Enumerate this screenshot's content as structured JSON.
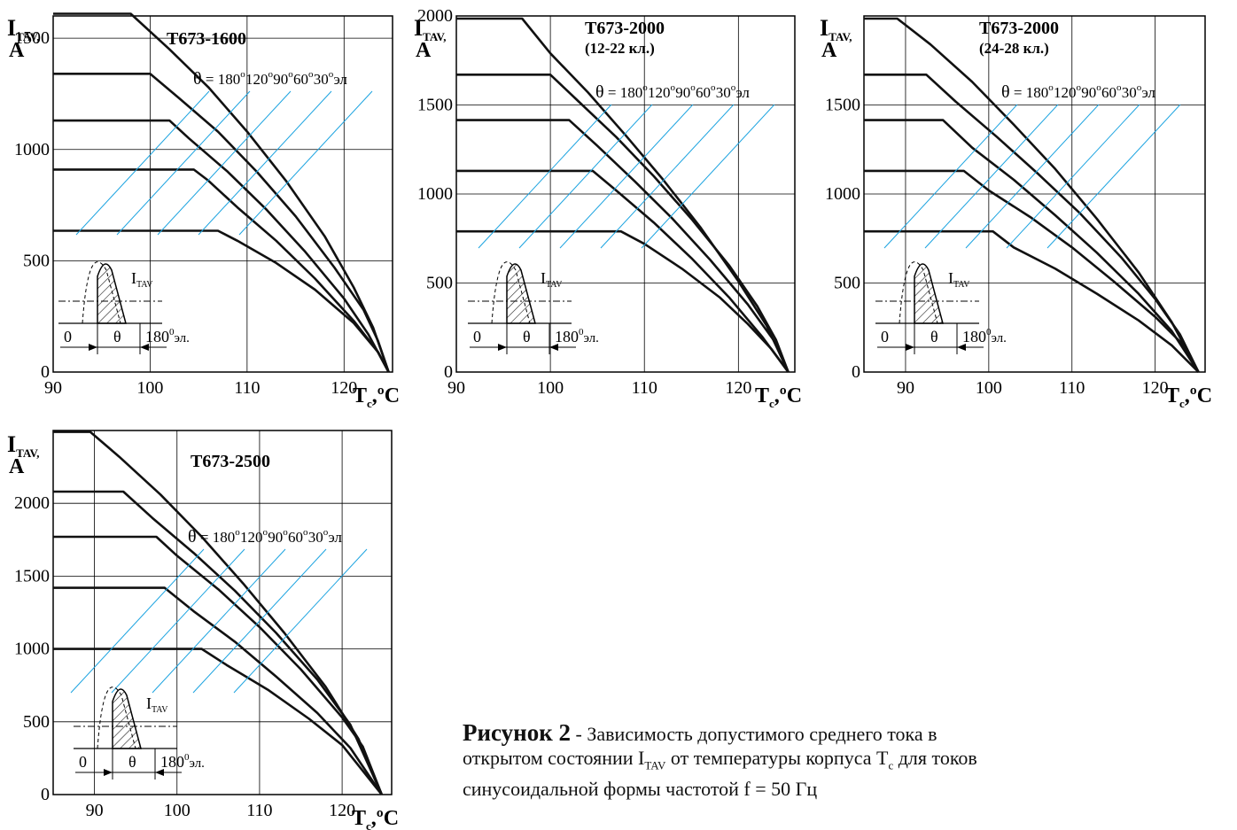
{
  "colors": {
    "curve": "#111111",
    "guide": "#1ba3e0",
    "grid": "#000000",
    "hatch": "#222222"
  },
  "symbols": {
    "current_main": "I",
    "current_sub": "TAV,",
    "amp": "A",
    "temp_main": "T",
    "temp_sub": "c",
    "temp_unit": ",ºC"
  },
  "theta_legend": {
    "symbol": "θ",
    "eq": " = ",
    "a1": "180",
    "a2": "120",
    "a3": " 90",
    "a4": " 60",
    "a5": " 30",
    "deg": "o",
    "unit": "эл"
  },
  "inset": {
    "zero": "0",
    "theta": "θ",
    "end": "180",
    "end_sup": "0",
    "end_unit": "эл.",
    "label_main": "I",
    "label_sub": "TAV"
  },
  "caption": {
    "title": "Рисунок 2",
    "dash": " - ",
    "line1": "Зависимость допустимого среднего тока в",
    "line2a": "открытом состоянии I",
    "line2sub": "TAV",
    "line2b": " от температуры корпуса  T",
    "line2sub2": "c",
    "line2c": "  для токов",
    "line3": "синусоидальной формы частотой f = 50 Гц"
  },
  "chart_data": [
    {
      "type": "line",
      "title": "Т673-1600",
      "subtitle": "",
      "xlabel": "Tc,ºC",
      "ylabel": "ITAV, A",
      "xlim": [
        90,
        125
      ],
      "ylim": [
        0,
        1600
      ],
      "xticks": [
        90,
        100,
        110,
        120
      ],
      "yticks": [
        0,
        500,
        1000,
        1500
      ],
      "grid": true,
      "series": [
        {
          "name": "180",
          "x": [
            90,
            98,
            102,
            106,
            110,
            114,
            118,
            121,
            123,
            124.6
          ],
          "y": [
            1610,
            1610,
            1450,
            1280,
            1080,
            860,
            610,
            380,
            200,
            0
          ]
        },
        {
          "name": "120",
          "x": [
            90,
            100,
            103,
            107,
            111,
            115,
            119,
            122,
            123.5,
            124.6
          ],
          "y": [
            1340,
            1340,
            1230,
            1080,
            900,
            700,
            470,
            280,
            140,
            0
          ]
        },
        {
          "name": "90",
          "x": [
            90,
            102,
            104,
            108,
            112,
            116,
            120,
            122.5,
            124.6
          ],
          "y": [
            1130,
            1130,
            1050,
            900,
            730,
            540,
            330,
            170,
            0
          ]
        },
        {
          "name": "60",
          "x": [
            90,
            104.5,
            106,
            109,
            113,
            117,
            121,
            123.5,
            124.6
          ],
          "y": [
            910,
            910,
            860,
            740,
            590,
            420,
            230,
            90,
            0
          ]
        },
        {
          "name": "30",
          "x": [
            90,
            107,
            109,
            113,
            117,
            121,
            123.5,
            124.6
          ],
          "y": [
            635,
            635,
            590,
            490,
            370,
            220,
            90,
            0
          ]
        }
      ]
    },
    {
      "type": "line",
      "title": "Т673-2000",
      "subtitle": "(12-22 кл.)",
      "xlabel": "Tc,ºC",
      "ylabel": "ITAV, A",
      "xlim": [
        90,
        126
      ],
      "ylim": [
        0,
        2000
      ],
      "xticks": [
        90,
        100,
        110,
        120
      ],
      "yticks": [
        0,
        500,
        1000,
        1500,
        2000
      ],
      "grid": true,
      "series": [
        {
          "name": "180",
          "x": [
            90,
            97,
            100,
            104,
            108,
            112,
            116,
            120,
            123,
            125.3
          ],
          "y": [
            1985,
            1985,
            1790,
            1570,
            1330,
            1080,
            810,
            510,
            260,
            0
          ]
        },
        {
          "name": "120",
          "x": [
            90,
            100,
            103,
            107,
            111,
            115,
            119,
            122,
            124,
            125.3
          ],
          "y": [
            1670,
            1670,
            1520,
            1320,
            1100,
            860,
            600,
            370,
            180,
            0
          ]
        },
        {
          "name": "90",
          "x": [
            90,
            102,
            105,
            109,
            113,
            117,
            121,
            124,
            125.3
          ],
          "y": [
            1415,
            1415,
            1270,
            1070,
            860,
            630,
            380,
            160,
            0
          ]
        },
        {
          "name": "60",
          "x": [
            90,
            104.5,
            107,
            111,
            115,
            119,
            122.5,
            125.3
          ],
          "y": [
            1130,
            1130,
            1020,
            840,
            640,
            420,
            200,
            0
          ]
        },
        {
          "name": "30",
          "x": [
            90,
            107.5,
            110,
            114,
            118,
            121,
            123.5,
            125.3
          ],
          "y": [
            790,
            790,
            720,
            580,
            420,
            270,
            130,
            0
          ]
        }
      ]
    },
    {
      "type": "line",
      "title": "Т673-2000",
      "subtitle": "(24-28 кл.)",
      "xlabel": "Tc,ºC",
      "ylabel": "ITAV, A",
      "xlim": [
        85,
        126
      ],
      "ylim": [
        0,
        2000
      ],
      "xticks": [
        90,
        100,
        110,
        120
      ],
      "yticks": [
        0,
        500,
        1000,
        1500
      ],
      "grid": true,
      "series": [
        {
          "name": "180",
          "x": [
            85,
            89,
            93,
            98,
            103,
            108,
            113,
            118,
            122,
            125.2
          ],
          "y": [
            1985,
            1985,
            1840,
            1630,
            1390,
            1140,
            860,
            560,
            280,
            0
          ]
        },
        {
          "name": "120",
          "x": [
            85,
            92.5,
            96,
            101,
            106,
            111,
            116,
            120,
            123,
            125.2
          ],
          "y": [
            1670,
            1670,
            1520,
            1320,
            1110,
            890,
            640,
            410,
            210,
            0
          ]
        },
        {
          "name": "90",
          "x": [
            85,
            94.5,
            98,
            103,
            108,
            113,
            118,
            122,
            125.2
          ],
          "y": [
            1415,
            1415,
            1260,
            1080,
            880,
            670,
            440,
            230,
            0
          ]
        },
        {
          "name": "60",
          "x": [
            85,
            97,
            100,
            105,
            110,
            115,
            120,
            123,
            125.2
          ],
          "y": [
            1130,
            1130,
            1020,
            870,
            700,
            510,
            310,
            170,
            0
          ]
        },
        {
          "name": "30",
          "x": [
            85,
            100.5,
            103,
            108,
            113,
            118,
            122,
            125.2
          ],
          "y": [
            790,
            790,
            700,
            580,
            440,
            290,
            150,
            0
          ]
        }
      ]
    },
    {
      "type": "line",
      "title": "Т673-2500",
      "subtitle": "",
      "xlabel": "Tc,ºC",
      "ylabel": "ITAV, A",
      "xlim": [
        85,
        126
      ],
      "ylim": [
        0,
        2500
      ],
      "xticks": [
        90,
        100,
        110,
        120
      ],
      "yticks": [
        0,
        500,
        1000,
        1500,
        2000
      ],
      "grid": true,
      "series": [
        {
          "name": "180",
          "x": [
            85,
            89.5,
            93,
            98,
            103,
            108,
            113,
            118,
            122,
            124.8
          ],
          "y": [
            2490,
            2490,
            2320,
            2060,
            1770,
            1450,
            1110,
            740,
            380,
            0
          ]
        },
        {
          "name": "120",
          "x": [
            85,
            93.5,
            97,
            102,
            107,
            112,
            117,
            121,
            124.8
          ],
          "y": [
            2080,
            2080,
            1900,
            1660,
            1400,
            1110,
            790,
            480,
            0
          ]
        },
        {
          "name": "90",
          "x": [
            85,
            97.5,
            100,
            105,
            110,
            115,
            120,
            122.5,
            124.8
          ],
          "y": [
            1770,
            1770,
            1640,
            1410,
            1150,
            860,
            530,
            330,
            0
          ]
        },
        {
          "name": "60",
          "x": [
            85,
            98.5,
            102,
            107,
            112,
            117,
            121,
            124.8
          ],
          "y": [
            1420,
            1420,
            1260,
            1050,
            810,
            560,
            320,
            0
          ]
        },
        {
          "name": "30",
          "x": [
            85,
            103,
            106,
            111,
            116,
            120,
            124.8
          ],
          "y": [
            1000,
            1000,
            890,
            720,
            520,
            340,
            0
          ]
        }
      ]
    }
  ]
}
